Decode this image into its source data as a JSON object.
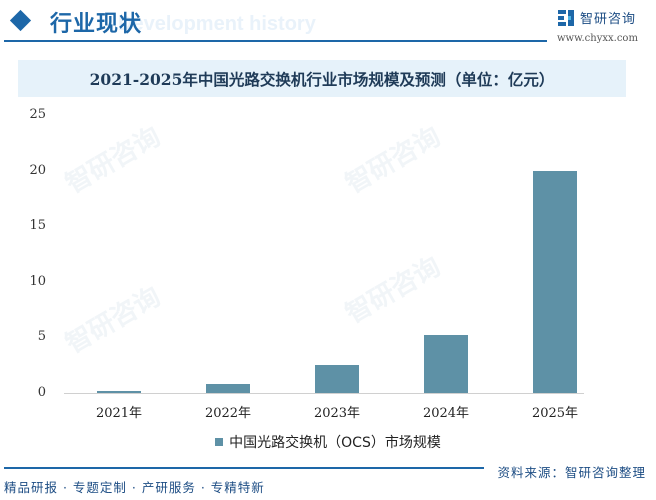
{
  "header": {
    "section_title": "行业现状",
    "ghost_subtitle": "Development history",
    "brand_name": "智研咨询",
    "brand_url": "www.chyxx.com"
  },
  "chart_title": "2021-2025年中国光路交换机行业市场规模及预测（单位：亿元）",
  "chart_data": {
    "type": "bar",
    "title": "2021-2025年中国光路交换机行业市场规模及预测（单位：亿元）",
    "categories": [
      "2021年",
      "2022年",
      "2023年",
      "2024年",
      "2025年"
    ],
    "series": [
      {
        "name": "中国光路交换机（OCS）市场规模",
        "values": [
          0.2,
          0.8,
          2.5,
          5.2,
          20.0
        ],
        "color": "#5e91a6"
      }
    ],
    "xlabel": "",
    "ylabel": "",
    "ylim": [
      0,
      25
    ],
    "yticks": [
      0,
      5,
      10,
      15,
      20,
      25
    ],
    "grid": false,
    "legend_position": "bottom"
  },
  "y_ticks": [
    "25",
    "20",
    "15",
    "10",
    "5",
    "0"
  ],
  "legend": {
    "label": "中国光路交换机（OCS）市场规模"
  },
  "footer": {
    "source": "资料来源：智研咨询整理",
    "tagline": "精品研报 · 专题定制 · 产研服务 · 专精特新"
  },
  "watermark": {
    "text": "智研咨询"
  },
  "colors": {
    "accent": "#1d67a8",
    "bar": "#5e91a6",
    "title_band": "#e6f2fa"
  }
}
